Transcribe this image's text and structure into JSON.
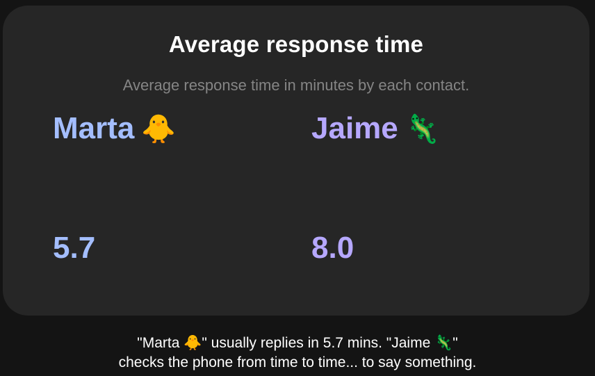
{
  "card": {
    "title": "Average response time",
    "subtitle": "Average response time in minutes by each contact."
  },
  "contacts": [
    {
      "name": "Marta",
      "emoji": "🐥",
      "value": "5.7",
      "color": "#a4beff"
    },
    {
      "name": "Jaime",
      "emoji": "🦎",
      "value": "8.0",
      "color": "#b6a8ff"
    }
  ],
  "caption": {
    "line1": "\"Marta 🐥\" usually replies in 5.7 mins. \"Jaime 🦎\"",
    "line2": "checks the phone from time to time... to say something."
  }
}
